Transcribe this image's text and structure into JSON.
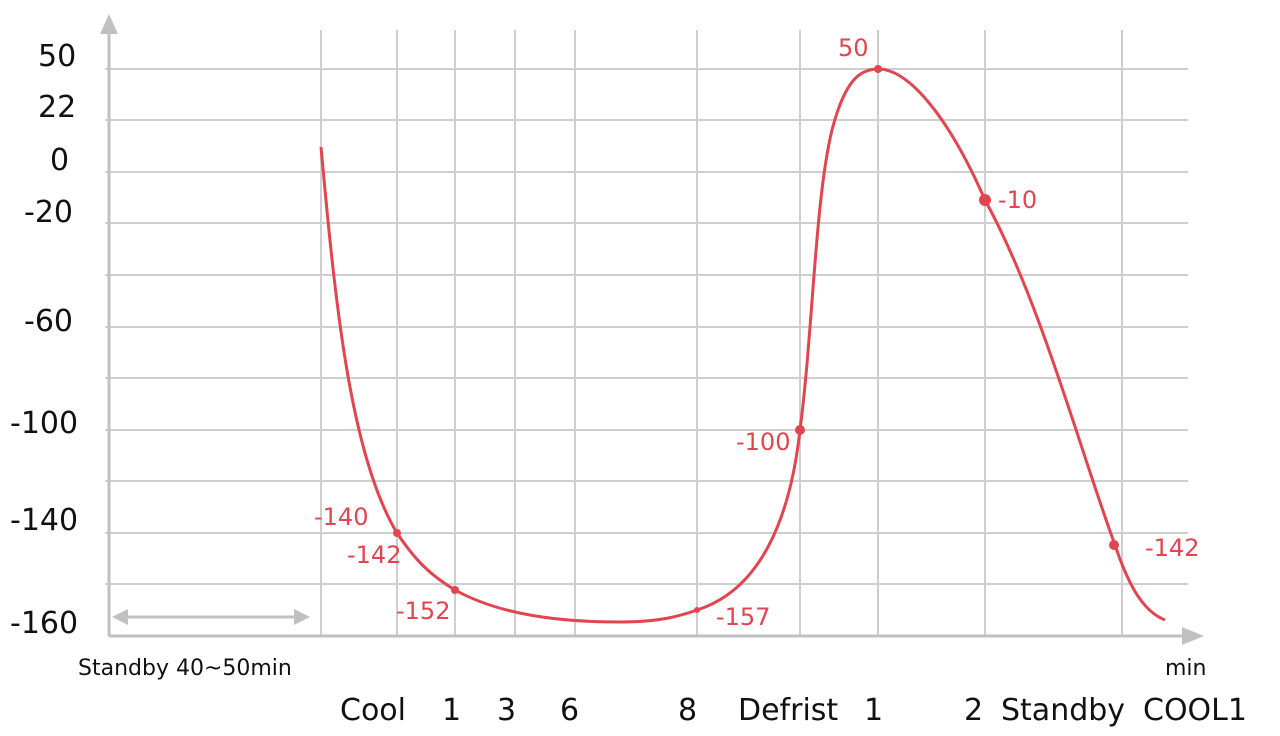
{
  "chart_data": {
    "type": "line",
    "ytick_labels": [
      "50",
      "22",
      "0",
      "-20",
      "-60",
      "-100",
      "-140",
      "-160"
    ],
    "xtick_labels": [
      "Cool",
      "1",
      "3",
      "6",
      "8",
      "Defrist",
      "1",
      "2",
      "Standby",
      "COOL1"
    ],
    "xunit": "min",
    "standby_annotation": "Standby 40~50min",
    "series": [
      {
        "color": "#e04550",
        "points": [
          {
            "label": "-140"
          },
          {
            "label": "-142"
          },
          {
            "label": "-152"
          },
          {
            "label": "-157"
          },
          {
            "label": "-100"
          },
          {
            "label": "50"
          },
          {
            "label": "-10"
          },
          {
            "label": "-142"
          }
        ]
      }
    ],
    "grid": true,
    "axis_color": "#c0c0c0",
    "grid_color": "#cfcfcf"
  }
}
